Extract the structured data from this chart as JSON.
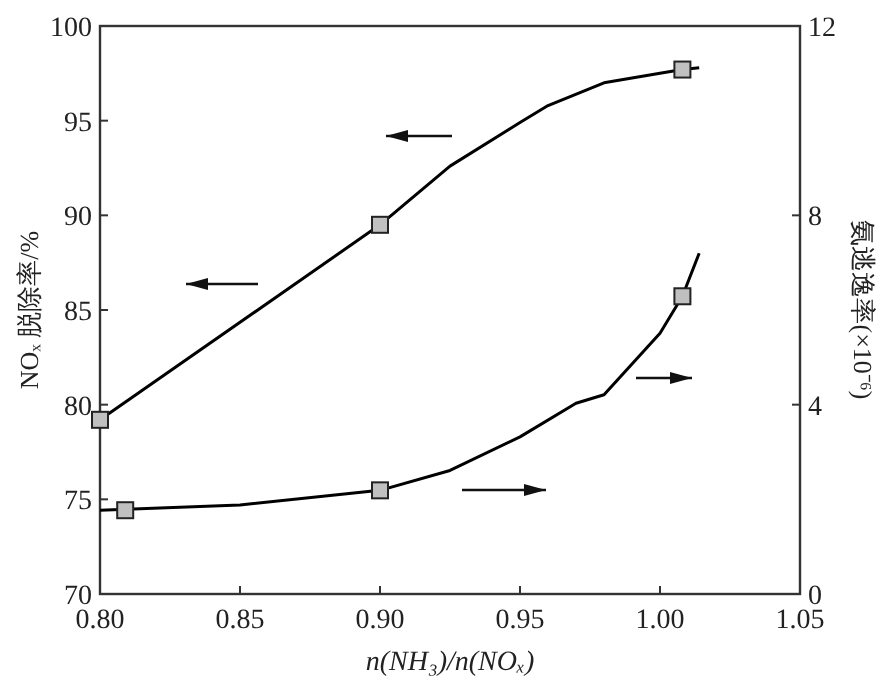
{
  "chart_data": {
    "type": "line",
    "xlabel": "n(NH₃)/n(NOₓ)",
    "ylabel": "NOₓ 脱除率/%",
    "y2label": "氨逃逸率(×10⁻⁶)",
    "xlim": [
      0.8,
      1.05
    ],
    "xticks": [
      {
        "value": 0.8,
        "label": "0.80"
      },
      {
        "value": 0.85,
        "label": "0.85"
      },
      {
        "value": 0.9,
        "label": "0.90"
      },
      {
        "value": 0.95,
        "label": "0.95"
      },
      {
        "value": 1.0,
        "label": "1.00"
      },
      {
        "value": 1.05,
        "label": "1.05"
      }
    ],
    "ylim": [
      70,
      100
    ],
    "yticks": [
      70,
      75,
      80,
      85,
      90,
      95,
      100
    ],
    "y2lim": [
      0,
      12
    ],
    "y2ticks": [
      0,
      4,
      8,
      12
    ],
    "grid": false,
    "series": [
      {
        "axis": "y",
        "color": "#000000",
        "marker": "none",
        "x": [
          0.8,
          0.9,
          0.925,
          0.95,
          0.96,
          0.98,
          1.0,
          1.008,
          1.014
        ],
        "values": [
          79.2,
          89.5,
          92.6,
          94.9,
          95.8,
          97.0,
          97.5,
          97.7,
          97.8
        ]
      },
      {
        "type": "scatter",
        "axis": "y",
        "color": "#c0c0c0",
        "marker": "square",
        "x": [
          0.8,
          0.9,
          1.008
        ],
        "values": [
          79.2,
          89.5,
          97.7
        ]
      },
      {
        "axis": "y2",
        "color": "#000000",
        "marker": "none",
        "x": [
          0.8,
          0.85,
          0.9,
          0.925,
          0.95,
          0.97,
          0.98,
          1.0,
          1.008,
          1.014
        ],
        "values": [
          1.77,
          1.88,
          2.19,
          2.61,
          3.32,
          4.03,
          4.21,
          5.51,
          6.29,
          7.2
        ]
      },
      {
        "type": "scatter",
        "axis": "y2",
        "color": "#c0c0c0",
        "marker": "square",
        "x": [
          0.809,
          0.9,
          1.008
        ],
        "values": [
          1.77,
          2.19,
          6.29
        ]
      }
    ]
  }
}
